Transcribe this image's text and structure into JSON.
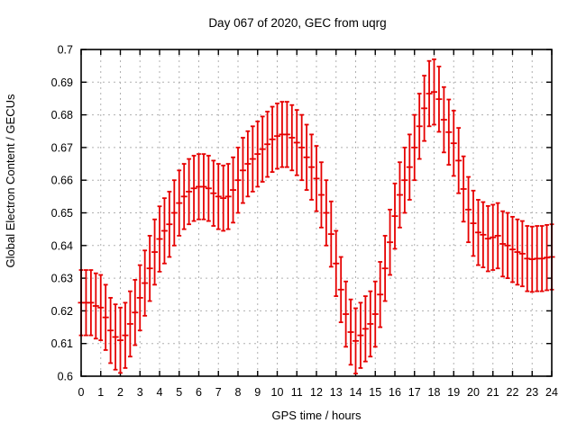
{
  "chart_data": {
    "type": "scatter",
    "style": "yerrorbars",
    "title": "Day 067 of 2020, GEC from uqrg",
    "xlabel": "GPS time / hours",
    "ylabel": "Global Electron Content / GECUs",
    "xlim": [
      0,
      24
    ],
    "ylim": [
      0.6,
      0.7
    ],
    "grid": true,
    "legend": false,
    "series_color": "#e60000",
    "grid_color": "#b0b0b0",
    "axis_color": "#000000",
    "background_color": "#ffffff",
    "xtick_values": [
      0,
      1,
      2,
      3,
      4,
      5,
      6,
      7,
      8,
      9,
      10,
      11,
      12,
      13,
      14,
      15,
      16,
      17,
      18,
      19,
      20,
      21,
      22,
      23,
      24
    ],
    "xtick_labels": [
      "0",
      "1",
      "2",
      "3",
      "4",
      "5",
      "6",
      "7",
      "8",
      "9",
      "10",
      "11",
      "12",
      "13",
      "14",
      "15",
      "16",
      "17",
      "18",
      "19",
      "20",
      "21",
      "22",
      "23",
      "24"
    ],
    "ytick_values": [
      0.6,
      0.61,
      0.62,
      0.63,
      0.64,
      0.65,
      0.66,
      0.67,
      0.68,
      0.69,
      0.7
    ],
    "ytick_labels": [
      "0.6",
      "0.61",
      "0.62",
      "0.63",
      "0.64",
      "0.65",
      "0.66",
      "0.67",
      "0.68",
      "0.69",
      "0.7"
    ],
    "yerr": 0.01,
    "x": [
      0,
      0.25,
      0.5,
      0.75,
      1,
      1.25,
      1.5,
      1.75,
      2,
      2.25,
      2.5,
      2.75,
      3,
      3.25,
      3.5,
      3.75,
      4,
      4.25,
      4.5,
      4.75,
      5,
      5.25,
      5.5,
      5.75,
      6,
      6.25,
      6.5,
      6.75,
      7,
      7.25,
      7.5,
      7.75,
      8,
      8.25,
      8.5,
      8.75,
      9,
      9.25,
      9.5,
      9.75,
      10,
      10.25,
      10.5,
      10.75,
      11,
      11.25,
      11.5,
      11.75,
      12,
      12.25,
      12.5,
      12.75,
      13,
      13.25,
      13.5,
      13.75,
      14,
      14.25,
      14.5,
      14.75,
      15,
      15.25,
      15.5,
      15.75,
      16,
      16.25,
      16.5,
      16.75,
      17,
      17.25,
      17.5,
      17.75,
      18,
      18.25,
      18.5,
      18.75,
      19,
      19.25,
      19.5,
      19.75,
      20,
      20.25,
      20.5,
      20.75,
      21,
      21.25,
      21.5,
      21.75,
      22,
      22.25,
      22.5,
      22.75,
      23,
      23.25,
      23.5,
      23.75,
      24
    ],
    "y": [
      0.6225,
      0.6225,
      0.6225,
      0.6215,
      0.621,
      0.618,
      0.614,
      0.612,
      0.611,
      0.6125,
      0.616,
      0.6195,
      0.624,
      0.6285,
      0.633,
      0.638,
      0.642,
      0.6445,
      0.6465,
      0.65,
      0.653,
      0.655,
      0.6565,
      0.6575,
      0.658,
      0.658,
      0.6575,
      0.656,
      0.655,
      0.6545,
      0.655,
      0.657,
      0.66,
      0.663,
      0.665,
      0.6665,
      0.668,
      0.6695,
      0.671,
      0.6725,
      0.6735,
      0.674,
      0.674,
      0.673,
      0.6715,
      0.67,
      0.667,
      0.664,
      0.6605,
      0.6555,
      0.65,
      0.6435,
      0.6345,
      0.6265,
      0.619,
      0.6135,
      0.6108,
      0.6125,
      0.6145,
      0.616,
      0.619,
      0.625,
      0.633,
      0.641,
      0.649,
      0.6555,
      0.66,
      0.664,
      0.67,
      0.6765,
      0.682,
      0.6865,
      0.687,
      0.6848,
      0.6785,
      0.6747,
      0.6713,
      0.666,
      0.6573,
      0.651,
      0.6468,
      0.644,
      0.6433,
      0.6421,
      0.6425,
      0.643,
      0.6405,
      0.64,
      0.6388,
      0.638,
      0.6375,
      0.636,
      0.6358,
      0.636,
      0.636,
      0.6363,
      0.6365
    ]
  }
}
